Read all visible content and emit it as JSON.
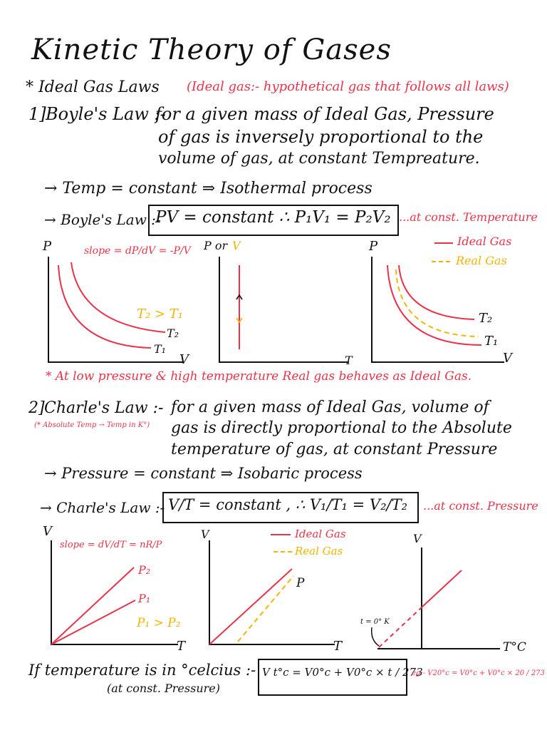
{
  "title": "Kinetic Theory of Gases",
  "section1": {
    "heading": "* Ideal Gas Laws",
    "note": "(Ideal gas:- hypothetical gas that follows all laws)"
  },
  "boyle": {
    "number": "1]",
    "label": "Boyle's Law :-",
    "def_line1": "for a given mass of Ideal Gas, Pressure",
    "def_line2": "of gas is inversely proportional to the",
    "def_line3": "volume of gas, at constant Tempreature.",
    "arrow1": "→ Temp = constant ⇒ Isothermal process",
    "arrow2_label": "→ Boyle's Law :-",
    "formula": "PV = constant ∴ P₁V₁ = P₂V₂",
    "formula_note": "...at const. Temperature",
    "graph1": {
      "ylabel": "P",
      "xlabel": "V",
      "slope": "slope = dP/dV = -P/V",
      "cond": "T₂ > T₁",
      "curve_top": "T₂",
      "curve_bot": "T₁"
    },
    "graph2": {
      "ylabel_a": "P or",
      "ylabel_b": "V",
      "xlabel": "T"
    },
    "graph3": {
      "ylabel": "P",
      "xlabel": "V",
      "legend_ideal": "Ideal Gas",
      "legend_real": "Real Gas",
      "curve_top": "T₂",
      "curve_bot": "T₁"
    },
    "note": "* At low pressure & high temperature Real gas behaves as Ideal Gas."
  },
  "charles": {
    "number": "2]",
    "label": "Charle's Law :-",
    "sub_note": "(* Absolute Temp → Temp in K°)",
    "def_line1": "for a given mass of Ideal Gas, volume of",
    "def_line2": "gas is directly proportional to the Absolute",
    "def_line3": "temperature of gas, at constant Pressure",
    "arrow1": "→ Pressure = constant ⇒ Isobaric process",
    "arrow2_label": "→ Charle's Law :-",
    "formula": "V/T = constant , ∴ V₁/T₁ = V₂/T₂",
    "formula_note": "...at const. Pressure",
    "graph1": {
      "ylabel": "V",
      "xlabel": "T",
      "slope": "slope = dV/dT = nR/P",
      "p2": "P₂",
      "p1": "P₁",
      "cond": "P₁ > P₂"
    },
    "graph2": {
      "ylabel": "V",
      "xlabel": "T",
      "legend_ideal": "Ideal Gas",
      "legend_real": "Real Gas",
      "pl": "P"
    },
    "graph3": {
      "ylabel": "V",
      "xlabel": "T°C",
      "zero": "t = 0° K"
    }
  },
  "celsius": {
    "line1": "If temperature is in °celcius :-",
    "line2": "(at const. Pressure)",
    "formula": "V t°c = V0°c + V0°c × t / 273",
    "example": "eg:- V20°c = V0°c + V0°c × 20 / 273"
  }
}
